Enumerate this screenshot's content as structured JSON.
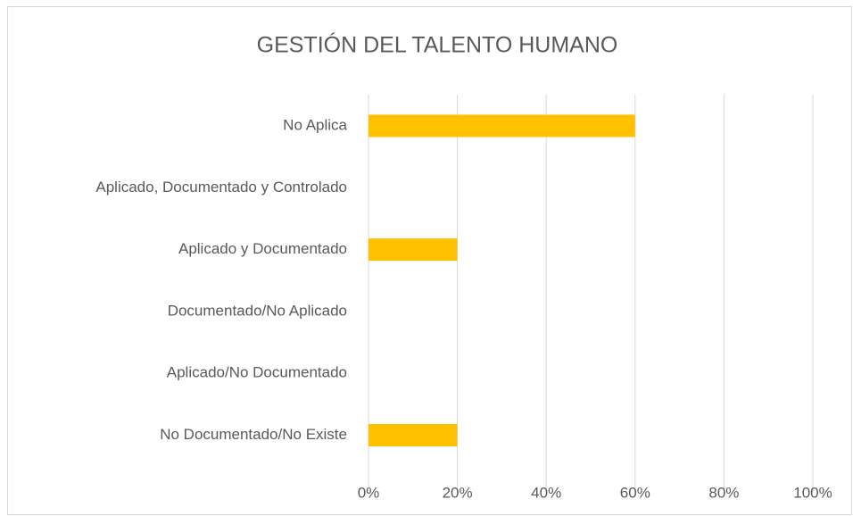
{
  "chart_data": {
    "type": "bar",
    "orientation": "horizontal",
    "title": "GESTIÓN DEL TALENTO HUMANO",
    "categories": [
      "No Aplica",
      "Aplicado, Documentado y Controlado",
      "Aplicado y Documentado",
      "Documentado/No Aplicado",
      "Aplicado/No Documentado",
      "No Documentado/No Existe"
    ],
    "values": [
      60,
      0,
      20,
      0,
      0,
      20
    ],
    "color": "#ffc000",
    "xlim": [
      0,
      100
    ],
    "xticks": [
      {
        "value": 0,
        "label": "0%"
      },
      {
        "value": 20,
        "label": "20%"
      },
      {
        "value": 40,
        "label": "40%"
      },
      {
        "value": 60,
        "label": "60%"
      },
      {
        "value": 80,
        "label": "80%"
      },
      {
        "value": 100,
        "label": "100%"
      }
    ],
    "grid": true
  }
}
